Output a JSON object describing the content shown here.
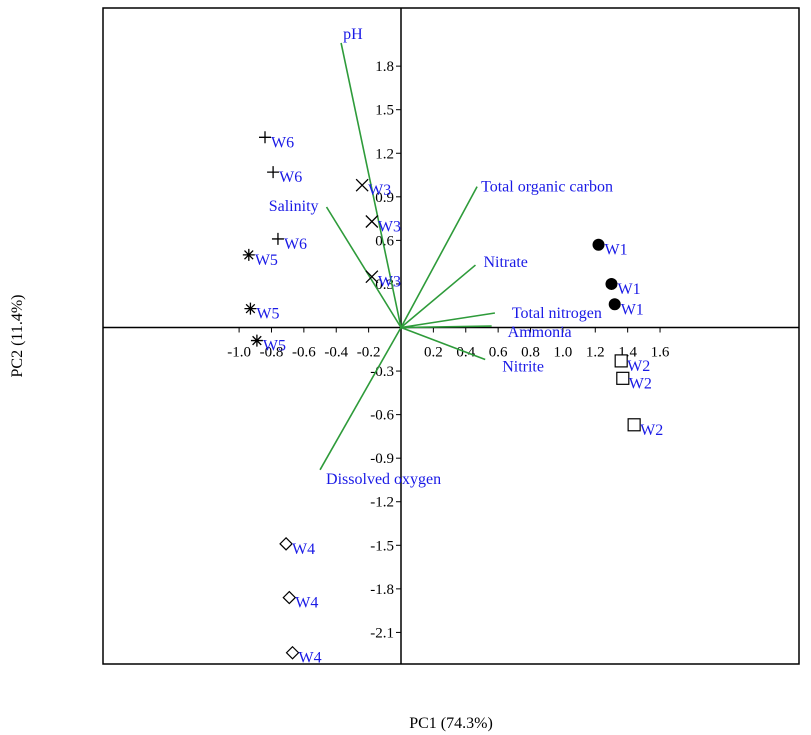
{
  "chart_data": {
    "type": "scatter",
    "subtype": "pca-biplot",
    "xlabel": "PC1 (74.3%)",
    "ylabel": "PC2 (11.4%)",
    "xlim": [
      -1.12,
      1.6
    ],
    "ylim": [
      -2.3,
      2.12
    ],
    "x_ticks": [
      -1.0,
      -0.8,
      -0.6,
      -0.4,
      -0.2,
      0.2,
      0.4,
      0.6,
      0.8,
      1.0,
      1.2,
      1.4,
      1.6
    ],
    "x_tick_labels": [
      "-1.0",
      "-0.8",
      "-0.6",
      "-0.4",
      "-0.2",
      "0.2",
      "0.4",
      "0.6",
      "0.8",
      "1.0",
      "1.2",
      "1.4",
      "1.6"
    ],
    "y_ticks": [
      1.8,
      1.5,
      1.2,
      0.9,
      0.6,
      0.3,
      -0.3,
      -0.6,
      -0.9,
      -1.2,
      -1.5,
      -1.8,
      -2.1
    ],
    "y_tick_labels": [
      "1.8",
      "1.5",
      "1.2",
      "0.9",
      "0.6",
      "0.3",
      "-0.3",
      "-0.6",
      "-0.9",
      "-1.2",
      "-1.5",
      "-1.8",
      "-2.1"
    ],
    "grid": false,
    "vector_color": "#2e9b3a",
    "label_color": "#1a1ae6",
    "vectors": [
      {
        "label": "pH",
        "x": -0.37,
        "y": 1.96
      },
      {
        "label": "Salinity",
        "x": -0.46,
        "y": 0.83
      },
      {
        "label": "Total organic carbon",
        "x": 0.47,
        "y": 0.97
      },
      {
        "label": "Nitrate",
        "x": 0.46,
        "y": 0.43
      },
      {
        "label": "Total nitrogen",
        "x": 0.58,
        "y": 0.1
      },
      {
        "label": "Ammonia",
        "x": 0.56,
        "y": 0.01
      },
      {
        "label": "Nitrite",
        "x": 0.52,
        "y": -0.22
      },
      {
        "label": "Dissolved oxygen",
        "x": -0.5,
        "y": -0.98
      }
    ],
    "series": [
      {
        "label": "W1",
        "marker": "filled-circle",
        "points": [
          [
            1.22,
            0.57
          ],
          [
            1.3,
            0.3
          ],
          [
            1.32,
            0.16
          ]
        ]
      },
      {
        "label": "W2",
        "marker": "square",
        "points": [
          [
            1.36,
            -0.23
          ],
          [
            1.37,
            -0.35
          ],
          [
            1.44,
            -0.67
          ]
        ]
      },
      {
        "label": "W3",
        "marker": "x",
        "points": [
          [
            -0.24,
            0.98
          ],
          [
            -0.18,
            0.73
          ],
          [
            -0.18,
            0.35
          ]
        ]
      },
      {
        "label": "W4",
        "marker": "diamond",
        "points": [
          [
            -0.71,
            -1.49
          ],
          [
            -0.69,
            -1.86
          ],
          [
            -0.67,
            -2.24
          ]
        ]
      },
      {
        "label": "W5",
        "marker": "asterisk",
        "points": [
          [
            -0.94,
            0.5
          ],
          [
            -0.93,
            0.13
          ],
          [
            -0.89,
            -0.09
          ]
        ]
      },
      {
        "label": "W6",
        "marker": "plus",
        "points": [
          [
            -0.84,
            1.31
          ],
          [
            -0.79,
            1.07
          ],
          [
            -0.76,
            0.61
          ]
        ]
      }
    ]
  }
}
